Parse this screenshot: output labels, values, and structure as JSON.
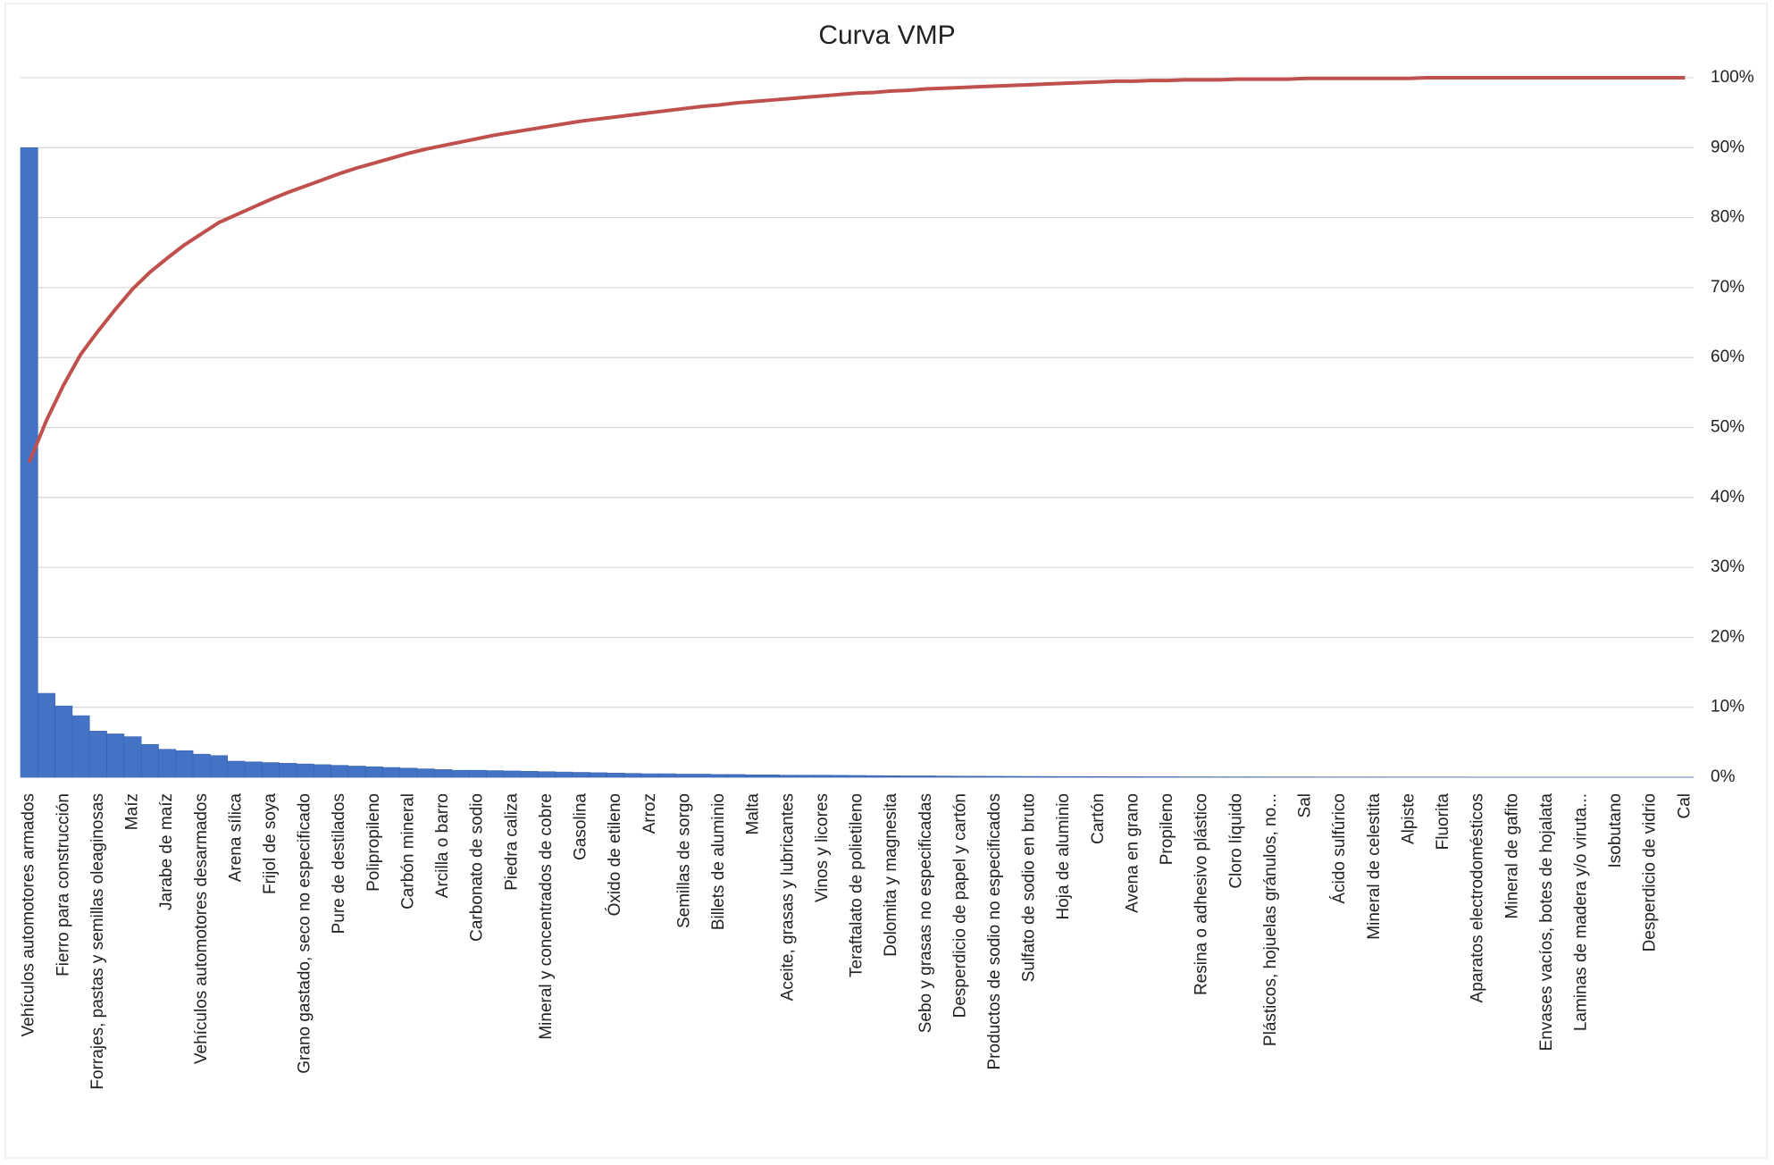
{
  "chart_data": {
    "type": "combo",
    "title": "Curva VMP",
    "categories": [
      "Vehículos automotores armados",
      null,
      "Fierro para construcción",
      null,
      "Forrajes, pastas y semillas oleaginosas",
      null,
      "Maíz",
      null,
      "Jarabe de maíz",
      null,
      "Vehículos automotores desarmados",
      null,
      "Arena sílica",
      null,
      "Frijol de soya",
      null,
      "Grano gastado, seco no especificado",
      null,
      "Pure de destilados",
      null,
      "Polipropileno",
      null,
      "Carbón mineral",
      null,
      "Arcilla o barro",
      null,
      "Carbonato de sodio",
      null,
      "Piedra caliza",
      null,
      "Mineral y concentrados de cobre",
      null,
      "Gasolina",
      null,
      "Óxido de etileno",
      null,
      "Arroz",
      null,
      "Semillas de sorgo",
      null,
      "Billets de aluminio",
      null,
      "Malta",
      null,
      "Aceite, grasas y lubricantes",
      null,
      "Vinos y licores",
      null,
      "Teraftalato de polietileno",
      null,
      "Dolomita y magnesita",
      null,
      "Sebo y grasas no especificadas",
      null,
      "Desperdicio de papel y cartón",
      null,
      "Productos de sodio no especificados",
      null,
      "Sulfato de sodio en bruto",
      null,
      "Hoja de aluminio",
      null,
      "Cartón",
      null,
      "Avena en grano",
      null,
      "Propileno",
      null,
      "Resina o adhesivo plástico",
      null,
      "Cloro líquido",
      null,
      "Plásticos, hojuelas gránulos, no...",
      null,
      "Sal",
      null,
      "Ácido sulfúrico",
      null,
      "Mineral de celestita",
      null,
      "Alpiste",
      null,
      "Fluorita",
      null,
      "Aparatos electrodomésticos",
      null,
      "Mineral de gafito",
      null,
      "Envases vacíos, botes de hojalata",
      null,
      "Laminas de madera y/o viruta...",
      null,
      "Isobutano",
      null,
      "Desperdicio de vidrio",
      null,
      "Cal"
    ],
    "series": [
      {
        "type": "bar",
        "color": "#4472c4",
        "values": [
          90,
          12,
          10.2,
          8.8,
          6.6,
          6.2,
          5.8,
          4.7,
          4.0,
          3.8,
          3.3,
          3.1,
          2.3,
          2.2,
          2.1,
          2.0,
          1.9,
          1.8,
          1.7,
          1.6,
          1.5,
          1.4,
          1.3,
          1.2,
          1.1,
          1.0,
          1.0,
          0.95,
          0.9,
          0.85,
          0.8,
          0.75,
          0.7,
          0.65,
          0.6,
          0.55,
          0.5,
          0.5,
          0.45,
          0.45,
          0.4,
          0.4,
          0.35,
          0.35,
          0.3,
          0.3,
          0.3,
          0.28,
          0.26,
          0.24,
          0.22,
          0.2,
          0.2,
          0.18,
          0.16,
          0.15,
          0.14,
          0.13,
          0.12,
          0.11,
          0.1,
          0.1,
          0.09,
          0.08,
          0.08,
          0.07,
          0.07,
          0.06,
          0.06,
          0.05,
          0.05,
          0.05,
          0.04,
          0.04,
          0.04,
          0.03,
          0.03,
          0.03,
          0.03,
          0.02,
          0.02,
          0.02,
          0.02,
          0.02,
          0.01,
          0.01,
          0.01,
          0.01,
          0.01,
          0.01,
          0.01,
          0.01,
          0.01,
          0.01,
          0.01,
          0.01,
          0.01
        ]
      },
      {
        "type": "line",
        "color": "#c0504d",
        "values": [
          45,
          51,
          56.1,
          60.5,
          63.8,
          66.9,
          69.8,
          72.2,
          74.2,
          76.1,
          77.7,
          79.3,
          80.4,
          81.5,
          82.6,
          83.6,
          84.5,
          85.4,
          86.3,
          87.1,
          87.8,
          88.5,
          89.2,
          89.8,
          90.3,
          90.8,
          91.3,
          91.8,
          92.2,
          92.6,
          93.0,
          93.4,
          93.8,
          94.1,
          94.4,
          94.7,
          95.0,
          95.3,
          95.6,
          95.9,
          96.1,
          96.4,
          96.6,
          96.8,
          97.0,
          97.2,
          97.4,
          97.6,
          97.8,
          97.9,
          98.1,
          98.2,
          98.4,
          98.5,
          98.6,
          98.7,
          98.8,
          98.9,
          99.0,
          99.1,
          99.2,
          99.3,
          99.4,
          99.5,
          99.5,
          99.6,
          99.6,
          99.7,
          99.7,
          99.7,
          99.8,
          99.8,
          99.8,
          99.8,
          99.9,
          99.9,
          99.9,
          99.9,
          99.9,
          99.9,
          99.9,
          100,
          100,
          100,
          100,
          100,
          100,
          100,
          100,
          100,
          100,
          100,
          100,
          100,
          100,
          100,
          100
        ]
      }
    ],
    "ylim": [
      0,
      100
    ],
    "yticks": [
      {
        "value": 0,
        "label": "0%"
      },
      {
        "value": 10,
        "label": "10%"
      },
      {
        "value": 20,
        "label": "20%"
      },
      {
        "value": 30,
        "label": "30%"
      },
      {
        "value": 40,
        "label": "40%"
      },
      {
        "value": 50,
        "label": "50%"
      },
      {
        "value": 60,
        "label": "60%"
      },
      {
        "value": 70,
        "label": "70%"
      },
      {
        "value": 80,
        "label": "80%"
      },
      {
        "value": 90,
        "label": "90%"
      },
      {
        "value": 100,
        "label": "100%"
      }
    ],
    "grid": true
  }
}
